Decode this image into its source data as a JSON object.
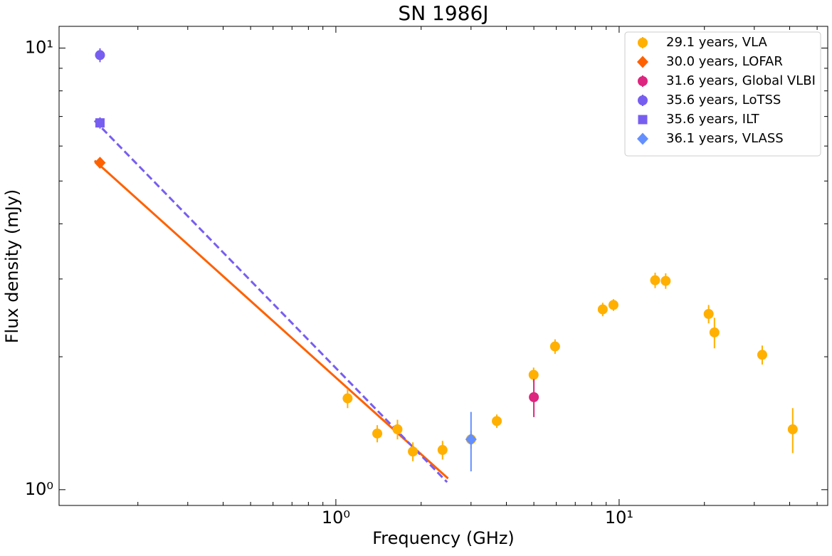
{
  "chart_data": {
    "type": "scatter",
    "title": "SN 1986J",
    "x_label": "Frequency (GHz)",
    "y_label": "Flux density (mJy)",
    "log_x": true,
    "log_y": true,
    "xlim": [
      0.1054,
      54.5
    ],
    "ylim": [
      0.921,
      11.2
    ],
    "xticks": [
      {
        "value": 1,
        "label": "10⁰"
      },
      {
        "value": 10,
        "label": "10¹"
      }
    ],
    "yticks": [
      {
        "value": 1,
        "label": "10⁰"
      },
      {
        "value": 10,
        "label": "10¹"
      }
    ],
    "xminorticks": [
      0.2,
      0.3,
      0.4,
      0.5,
      0.6,
      0.7,
      0.8,
      0.9,
      2,
      3,
      4,
      5,
      6,
      7,
      8,
      9,
      20,
      30,
      40,
      50
    ],
    "yminorticks": [
      2,
      3,
      4,
      5,
      6,
      7,
      8,
      9
    ],
    "legend": "upper right",
    "series": [
      {
        "name": "29.1 years, VLA",
        "color": "#FFB000",
        "marker": "circle",
        "x": [
          1.1,
          1.4,
          1.65,
          1.87,
          2.38,
          3.0,
          3.7,
          4.99,
          5.94,
          8.75,
          9.55,
          13.4,
          14.6,
          20.7,
          21.7,
          32.0,
          41.0
        ],
        "values": [
          1.61,
          1.34,
          1.37,
          1.22,
          1.23,
          1.3,
          1.43,
          1.82,
          2.11,
          2.56,
          2.62,
          2.98,
          2.97,
          2.5,
          2.27,
          2.02,
          1.37
        ],
        "errors": [
          0.08,
          0.06,
          0.07,
          0.06,
          0.06,
          0.06,
          0.05,
          0.07,
          0.08,
          0.09,
          0.08,
          0.12,
          0.12,
          0.12,
          0.18,
          0.1,
          0.16
        ]
      },
      {
        "name": "30.0 years, LOFAR",
        "color": "#FE6100",
        "marker": "diamond",
        "x": [
          0.147
        ],
        "values": [
          5.5
        ],
        "errors": [
          0.15
        ]
      },
      {
        "name": "31.6 years, Global VLBI",
        "color": "#DC267F",
        "marker": "circle",
        "x": [
          5.0
        ],
        "values": [
          1.62
        ],
        "errors": [
          0.16
        ]
      },
      {
        "name": "35.6 years, LoTSS",
        "color": "#785EF0",
        "marker": "circle",
        "x": [
          0.147
        ],
        "values": [
          9.64
        ],
        "errors": [
          0.35
        ]
      },
      {
        "name": "35.6 years, ILT",
        "color": "#785EF0",
        "marker": "square",
        "x": [
          0.147
        ],
        "values": [
          6.77
        ],
        "errors": [
          0.2
        ]
      },
      {
        "name": "36.1 years, VLASS",
        "color": "#648FFF",
        "marker": "diamond",
        "x": [
          3.0
        ],
        "values": [
          1.3
        ],
        "errors": [
          0.2
        ]
      }
    ],
    "fits": [
      {
        "color": "#FE6100",
        "dash": false,
        "x": [
          0.1407,
          2.49
        ],
        "values": [
          5.56,
          1.06
        ]
      },
      {
        "color": "#785EF0",
        "dash": true,
        "x": [
          0.1407,
          2.47
        ],
        "values": [
          6.85,
          1.04
        ]
      }
    ]
  }
}
